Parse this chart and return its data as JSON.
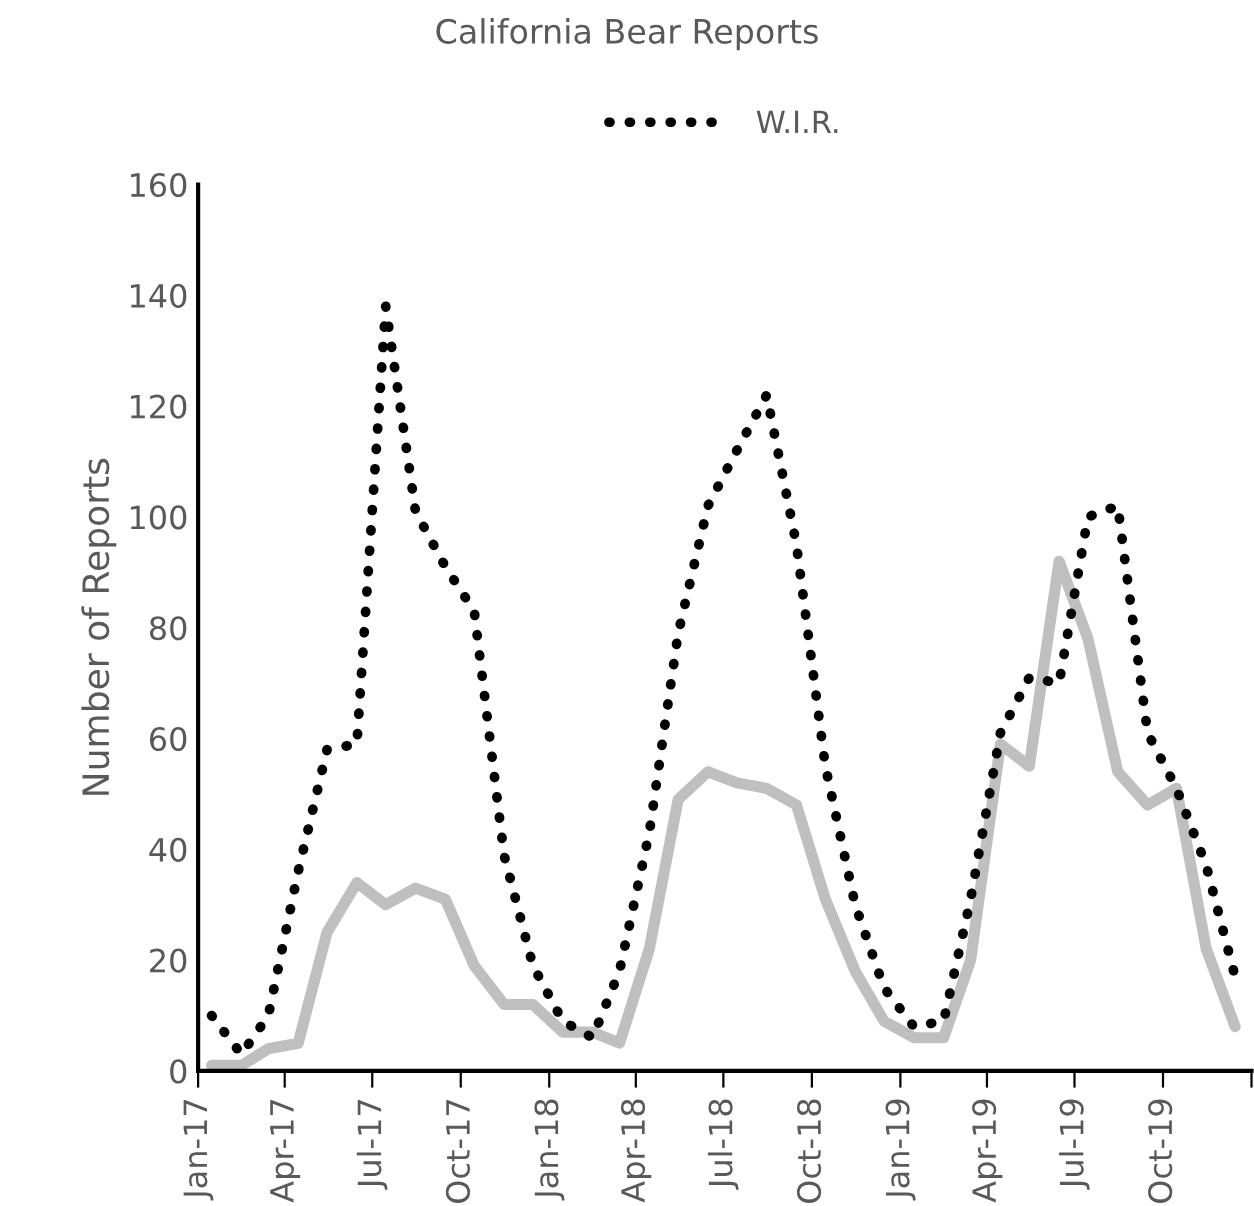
{
  "chart_data": {
    "type": "line",
    "title": "California Bear Reports",
    "ylabel": "Number of Reports",
    "x": [
      "2017-01-15",
      "2017-02-15",
      "2017-03-15",
      "2017-04-15",
      "2017-05-15",
      "2017-06-15",
      "2017-07-15",
      "2017-08-15",
      "2017-09-15",
      "2017-10-15",
      "2017-11-15",
      "2017-12-15",
      "2018-01-15",
      "2018-02-15",
      "2018-03-15",
      "2018-04-15",
      "2018-05-15",
      "2018-06-15",
      "2018-07-15",
      "2018-08-15",
      "2018-09-15",
      "2018-10-15",
      "2018-11-15",
      "2018-12-15",
      "2019-01-15",
      "2019-02-15",
      "2019-03-15",
      "2019-04-15",
      "2019-05-15",
      "2019-06-15",
      "2019-07-15",
      "2019-08-15",
      "2019-09-15",
      "2019-10-15",
      "2019-11-15",
      "2019-12-15"
    ],
    "series": [
      {
        "color": "#bfbfbf",
        "line_style": "solid",
        "values": [
          1,
          1,
          4,
          5,
          25,
          34,
          30,
          33,
          31,
          19,
          12,
          12,
          7,
          7,
          5,
          22,
          49,
          54,
          52,
          51,
          48,
          31,
          18,
          9,
          6,
          6,
          20,
          59,
          55,
          92,
          78,
          54,
          48,
          51,
          22,
          8
        ]
      },
      {
        "name": "W.I.R.",
        "color": "#000000",
        "line_style": "dotted",
        "values": [
          10,
          3,
          10,
          36,
          58,
          59,
          138,
          101,
          91,
          83,
          39,
          19,
          9,
          6,
          18,
          43,
          79,
          102,
          112,
          122,
          95,
          55,
          30,
          15,
          8,
          9,
          31,
          61,
          71,
          70,
          100,
          102,
          61,
          51,
          37,
          17
        ]
      }
    ],
    "xlim": [
      "2017-01-01",
      "2020-01-01"
    ],
    "xticks": [
      {
        "value": "2017-01-01",
        "label": "Jan-17"
      },
      {
        "value": "2017-04-01",
        "label": "Apr-17"
      },
      {
        "value": "2017-07-01",
        "label": "Jul-17"
      },
      {
        "value": "2017-10-01",
        "label": "Oct-17"
      },
      {
        "value": "2018-01-01",
        "label": "Jan-18"
      },
      {
        "value": "2018-04-01",
        "label": "Apr-18"
      },
      {
        "value": "2018-07-01",
        "label": "Jul-18"
      },
      {
        "value": "2018-10-01",
        "label": "Oct-18"
      },
      {
        "value": "2019-01-01",
        "label": "Jan-19"
      },
      {
        "value": "2019-04-01",
        "label": "Apr-19"
      },
      {
        "value": "2019-07-01",
        "label": "Jul-19"
      },
      {
        "value": "2019-10-01",
        "label": "Oct-19"
      },
      {
        "value": "2020-01-01",
        "label": null
      }
    ],
    "ylim": [
      0,
      160
    ],
    "yticks": [
      0,
      20,
      40,
      60,
      80,
      100,
      120,
      140,
      160
    ],
    "grid": false,
    "legend": "top",
    "marker": "none"
  }
}
